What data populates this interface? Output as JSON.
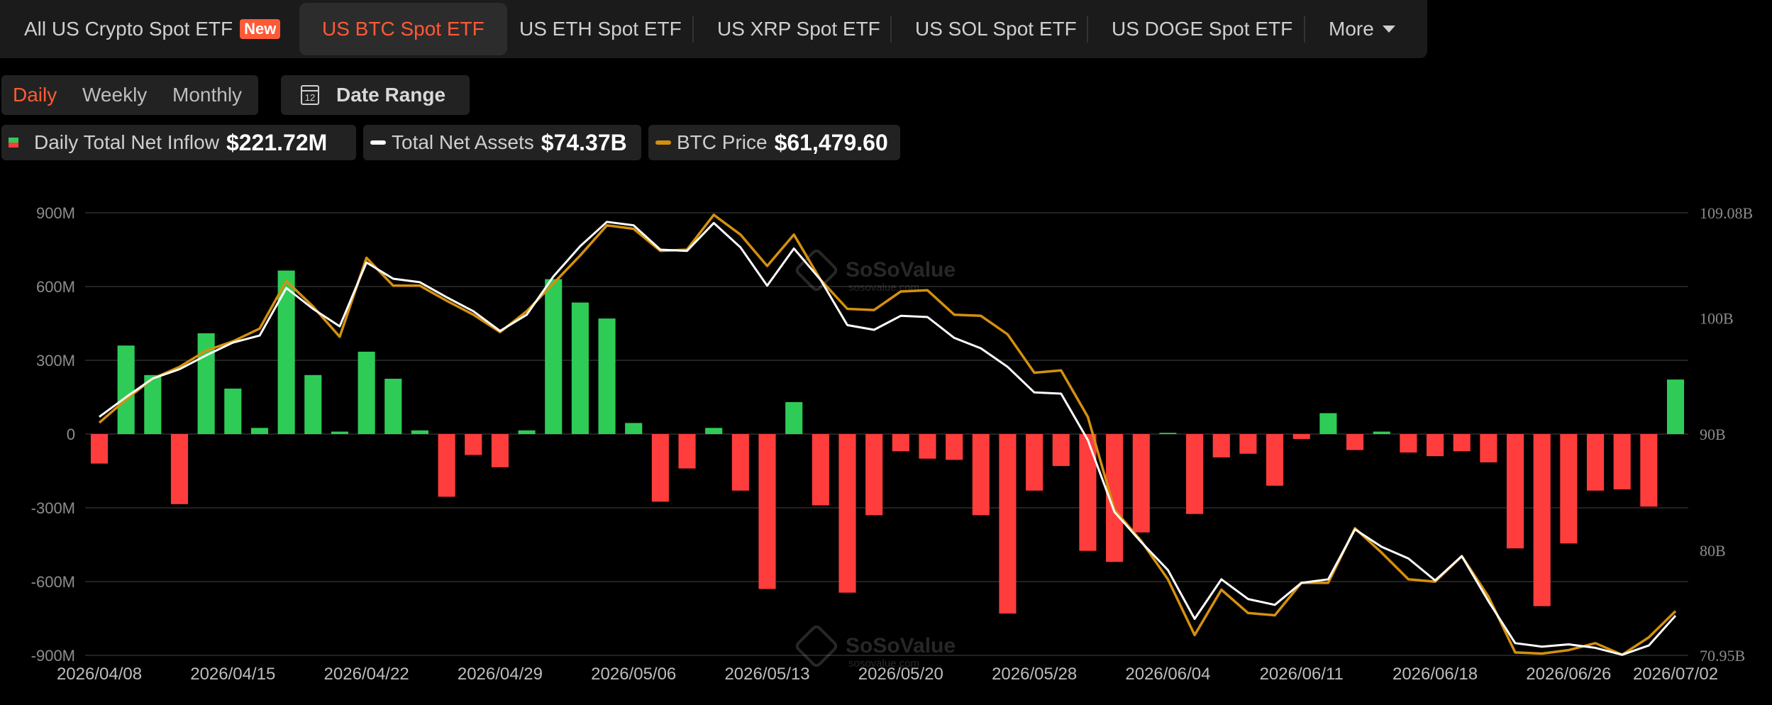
{
  "tabs": [
    {
      "label": "All US Crypto Spot ETF",
      "badge": "New"
    },
    {
      "label": "US BTC Spot ETF"
    },
    {
      "label": "US ETH Spot ETF"
    },
    {
      "label": "US XRP Spot ETF"
    },
    {
      "label": "US SOL Spot ETF"
    },
    {
      "label": "US DOGE Spot ETF"
    },
    {
      "label": "More"
    }
  ],
  "active_tab": "US BTC Spot ETF",
  "periods": [
    "Daily",
    "Weekly",
    "Monthly"
  ],
  "active_period": "Daily",
  "date_range_label": "Date Range",
  "calendar_icon_number": "12",
  "legend": {
    "inflow_label": "Daily Total Net Inflow",
    "inflow_value": "$221.72M",
    "assets_label": "Total Net Assets",
    "assets_value": "$74.37B",
    "price_label": "BTC Price",
    "price_value": "$61,479.60"
  },
  "watermark": {
    "brand": "SoSoValue",
    "url": "sosovalue.com"
  },
  "colors": {
    "accent": "#ff5a36",
    "inflow_positive": "#2ecc57",
    "inflow_negative": "#ff3d3d",
    "assets_line": "#ffffff",
    "price_line": "#d4900e"
  },
  "chart_data": {
    "type": "bar",
    "x_ticks": [
      "2026/04/08",
      "2026/04/15",
      "2026/04/22",
      "2026/04/29",
      "2026/05/06",
      "2026/05/13",
      "2026/05/20",
      "2026/05/28",
      "2026/06/04",
      "2026/06/11",
      "2026/06/18",
      "2026/06/26",
      "2026/07/02"
    ],
    "left_axis": {
      "ticks": [
        "900M",
        "600M",
        "300M",
        "0",
        "-300M",
        "-600M",
        "-900M"
      ],
      "ylim": [
        -900,
        900
      ],
      "unit": "M"
    },
    "right_axis": {
      "ticks": [
        "109.08B",
        "100B",
        "90B",
        "80B",
        "70.95B"
      ],
      "ylim": [
        70.95,
        109.08
      ],
      "unit": "B"
    },
    "grid": true,
    "series": [
      {
        "name": "Daily Total Net Inflow",
        "type": "bar",
        "axis": "left",
        "values": [
          -120,
          360,
          240,
          -285,
          410,
          185,
          25,
          665,
          240,
          10,
          335,
          225,
          15,
          -255,
          -85,
          -135,
          15,
          630,
          535,
          470,
          45,
          -275,
          -140,
          25,
          -230,
          -630,
          130,
          -290,
          -645,
          -330,
          -70,
          -100,
          -105,
          -330,
          -730,
          -230,
          -130,
          -475,
          -520,
          -400,
          5,
          -325,
          -95,
          -80,
          -210,
          -20,
          85,
          -65,
          10,
          -75,
          -90,
          -70,
          -115,
          -465,
          -700,
          -445,
          -230,
          -225,
          -295,
          221.72
        ]
      },
      {
        "name": "Total Net Assets",
        "type": "line",
        "axis": "right",
        "values": [
          91.5,
          93.2,
          94.8,
          95.6,
          96.8,
          97.9,
          98.5,
          102.6,
          100.8,
          99.3,
          104.8,
          103.4,
          103.1,
          101.8,
          100.6,
          98.9,
          100.3,
          103.6,
          106.2,
          108.3,
          108.0,
          105.9,
          105.8,
          108.2,
          106.1,
          102.8,
          106.0,
          103.3,
          99.4,
          99.0,
          100.2,
          100.1,
          98.3,
          97.4,
          95.8,
          93.6,
          93.5,
          89.5,
          83.3,
          80.7,
          78.3,
          74.1,
          77.5,
          75.8,
          75.3,
          77.2,
          77.5,
          81.8,
          80.3,
          79.3,
          77.4,
          79.5,
          75.6,
          72.0,
          71.7,
          71.9,
          71.6,
          71.0,
          71.8,
          74.37
        ]
      },
      {
        "name": "BTC Price",
        "type": "line",
        "axis": "right",
        "values": [
          91.0,
          93.0,
          94.8,
          95.8,
          97.2,
          98.0,
          99.1,
          103.2,
          101.0,
          98.4,
          105.2,
          102.8,
          102.8,
          101.5,
          100.3,
          98.8,
          100.6,
          103.0,
          105.4,
          108.0,
          107.7,
          105.8,
          105.9,
          108.9,
          107.2,
          104.5,
          107.2,
          103.3,
          100.8,
          100.7,
          102.3,
          102.4,
          100.3,
          100.2,
          98.6,
          95.3,
          95.5,
          91.5,
          83.5,
          80.8,
          77.5,
          72.7,
          76.6,
          74.6,
          74.4,
          77.2,
          77.2,
          81.9,
          79.8,
          77.5,
          77.3,
          79.5,
          76.0,
          71.2,
          71.1,
          71.4,
          72.0,
          71.0,
          72.5,
          74.76
        ]
      }
    ]
  }
}
